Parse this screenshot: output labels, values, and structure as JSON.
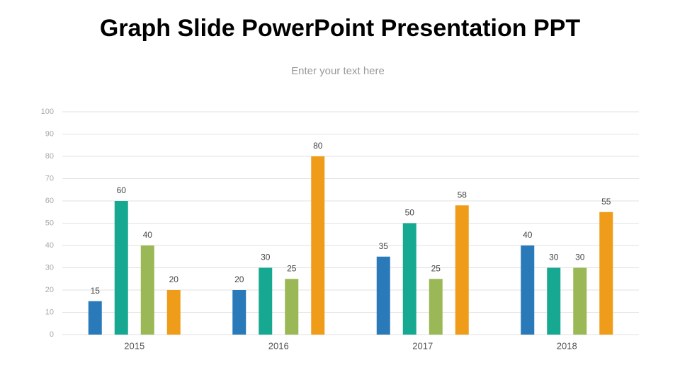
{
  "chart_data": {
    "type": "bar",
    "title": "Graph Slide PowerPoint Presentation PPT",
    "subtitle": "Enter your text here",
    "categories": [
      "2015",
      "2016",
      "2017",
      "2018"
    ],
    "series": [
      {
        "color": "#2a7ab9",
        "values": [
          15,
          20,
          35,
          40
        ]
      },
      {
        "color": "#17a891",
        "values": [
          60,
          30,
          50,
          30
        ]
      },
      {
        "color": "#9ab856",
        "values": [
          40,
          25,
          25,
          30
        ]
      },
      {
        "color": "#f09c1b",
        "values": [
          20,
          80,
          58,
          55
        ]
      }
    ],
    "ylim": [
      0,
      100
    ],
    "yticks": [
      0,
      10,
      20,
      30,
      40,
      50,
      60,
      70,
      80,
      90,
      100
    ],
    "grid": true
  }
}
